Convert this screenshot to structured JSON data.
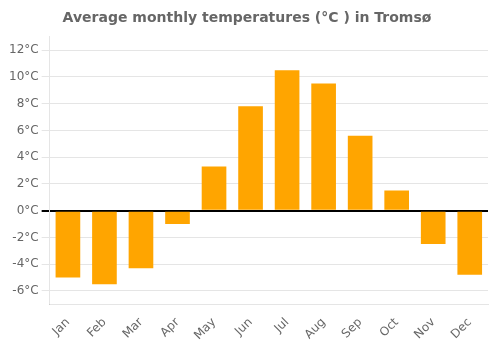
{
  "chart_data": {
    "type": "bar",
    "title": "Average monthly temperatures (°C ) in Tromsø",
    "categories": [
      "Jan",
      "Feb",
      "Mar",
      "Apr",
      "May",
      "Jun",
      "Jul",
      "Aug",
      "Sep",
      "Oct",
      "Nov",
      "Dec"
    ],
    "values": [
      -5.0,
      -5.5,
      -4.3,
      -1.0,
      3.3,
      7.8,
      10.5,
      9.5,
      5.6,
      1.5,
      -2.5,
      -4.8
    ],
    "color": "#FFA500",
    "ylim": [
      -7,
      13
    ],
    "yticks": [
      {
        "value": -6,
        "label": "-6°C"
      },
      {
        "value": -4,
        "label": "-4°C"
      },
      {
        "value": -2,
        "label": "-2°C"
      },
      {
        "value": 0,
        "label": "0°C"
      },
      {
        "value": 2,
        "label": "2°C"
      },
      {
        "value": 4,
        "label": "4°C"
      },
      {
        "value": 6,
        "label": "6°C"
      },
      {
        "value": 8,
        "label": "8°C"
      },
      {
        "value": 10,
        "label": "10°C"
      },
      {
        "value": 12,
        "label": "12°C"
      }
    ],
    "grid": true
  }
}
